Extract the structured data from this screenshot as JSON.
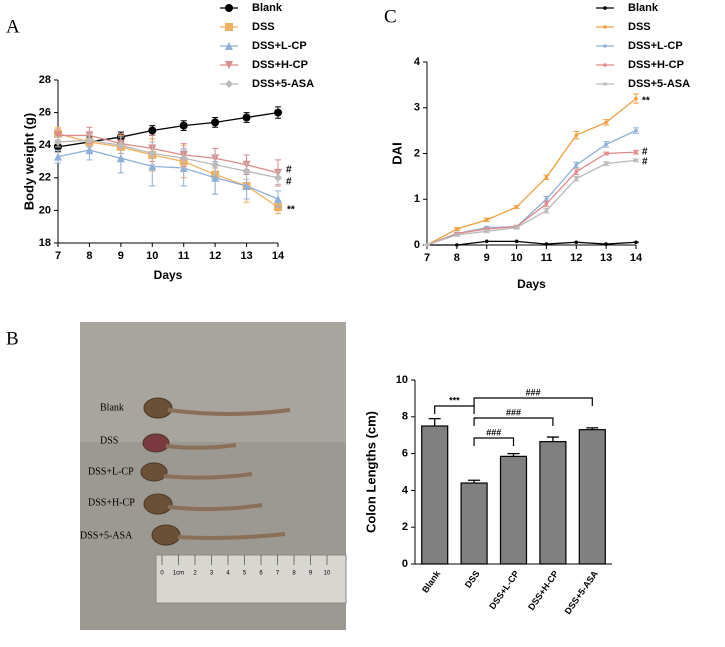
{
  "panel_labels": [
    "A",
    "C",
    "B"
  ],
  "chart_data": [
    {
      "type": "line",
      "xlabel": "Days",
      "ylabel": "Body weight (g)",
      "x": [
        7,
        8,
        9,
        10,
        11,
        12,
        13,
        14
      ],
      "xlim": [
        7,
        14
      ],
      "xticks": [
        7,
        8,
        9,
        10,
        11,
        12,
        13,
        14
      ],
      "ylim": [
        18,
        28
      ],
      "yticks": [
        18,
        20,
        22,
        24,
        26,
        28
      ],
      "series": [
        {
          "name": "Blank",
          "color": "#000000",
          "marker": "circle",
          "values": [
            23.9,
            24.2,
            24.5,
            24.9,
            25.2,
            25.4,
            25.7,
            26.0
          ],
          "errors": [
            0.3,
            0.3,
            0.3,
            0.3,
            0.3,
            0.3,
            0.3,
            0.35
          ]
        },
        {
          "name": "DSS",
          "color": "#f0b060",
          "marker": "square",
          "values": [
            24.7,
            24.2,
            23.9,
            23.4,
            23.0,
            22.2,
            21.5,
            20.2
          ],
          "errors": [
            0.4,
            0.5,
            0.7,
            1.0,
            1.0,
            1.2,
            1.0,
            0.4
          ]
        },
        {
          "name": "DSS+L-CP",
          "color": "#8fb0d8",
          "marker": "triangle",
          "values": [
            23.3,
            23.7,
            23.2,
            22.7,
            22.6,
            22.0,
            21.5,
            20.7
          ],
          "errors": [
            0.4,
            0.6,
            0.9,
            1.2,
            1.1,
            1.0,
            0.8,
            0.5
          ]
        },
        {
          "name": "DSS+H-CP",
          "color": "#d98a8a",
          "marker": "triangle-down",
          "values": [
            24.6,
            24.6,
            24.1,
            23.8,
            23.4,
            23.2,
            22.8,
            22.3
          ],
          "errors": [
            0.4,
            0.5,
            0.6,
            0.8,
            0.7,
            0.6,
            0.6,
            0.8
          ]
        },
        {
          "name": "DSS+5-ASA",
          "color": "#bbbbbb",
          "marker": "diamond",
          "values": [
            24.2,
            24.3,
            24.0,
            23.5,
            23.2,
            22.8,
            22.4,
            22.0
          ],
          "errors": [
            0.3,
            0.4,
            0.5,
            0.7,
            0.6,
            0.6,
            0.5,
            0.4
          ]
        }
      ],
      "annotations": [
        "#",
        "#",
        "**"
      ]
    },
    {
      "type": "line",
      "xlabel": "Days",
      "ylabel": "DAI",
      "x": [
        7,
        8,
        9,
        10,
        11,
        12,
        13,
        14
      ],
      "xlim": [
        7,
        14
      ],
      "xticks": [
        7,
        8,
        9,
        10,
        11,
        12,
        13,
        14
      ],
      "ylim": [
        0,
        4
      ],
      "yticks": [
        0,
        1,
        2,
        3,
        4
      ],
      "series": [
        {
          "name": "Blank",
          "color": "#000000",
          "marker": "dot",
          "values": [
            0,
            0,
            0.08,
            0.08,
            0.02,
            0.06,
            0.02,
            0.06
          ],
          "errors": [
            0,
            0,
            0,
            0,
            0,
            0,
            0,
            0
          ]
        },
        {
          "name": "DSS",
          "color": "#f0a040",
          "marker": "dot",
          "values": [
            0,
            0.35,
            0.55,
            0.83,
            1.48,
            2.4,
            2.68,
            3.2
          ],
          "errors": [
            0,
            0.03,
            0.04,
            0.03,
            0.05,
            0.08,
            0.06,
            0.1
          ]
        },
        {
          "name": "DSS+L-CP",
          "color": "#8fb0d8",
          "marker": "dot",
          "values": [
            0,
            0.25,
            0.38,
            0.4,
            1.0,
            1.75,
            2.2,
            2.5
          ],
          "errors": [
            0,
            0.03,
            0.03,
            0.03,
            0.06,
            0.06,
            0.06,
            0.06
          ]
        },
        {
          "name": "DSS+H-CP",
          "color": "#e08a8a",
          "marker": "dot",
          "values": [
            0,
            0.25,
            0.35,
            0.4,
            0.9,
            1.6,
            2.0,
            2.03
          ],
          "errors": [
            0,
            0.03,
            0.03,
            0.03,
            0.06,
            0.06,
            0.03,
            0.04
          ]
        },
        {
          "name": "DSS+5-ASA",
          "color": "#bbbbbb",
          "marker": "dot",
          "values": [
            0,
            0.22,
            0.3,
            0.38,
            0.75,
            1.45,
            1.78,
            1.85
          ],
          "errors": [
            0,
            0.03,
            0.03,
            0.03,
            0.05,
            0.05,
            0.04,
            0.03
          ]
        }
      ],
      "annotations": [
        "**",
        "#",
        "#"
      ]
    },
    {
      "type": "bar",
      "ylabel": "Colon Lengths (cm)",
      "color": "#808080",
      "categories": [
        "Blank",
        "DSS",
        "DSS+L-CP",
        "DSS+H-CP",
        "DSS+5-ASA"
      ],
      "values": [
        7.5,
        4.4,
        5.85,
        6.65,
        7.3
      ],
      "errors": [
        0.4,
        0.15,
        0.15,
        0.25,
        0.1
      ],
      "ylim": [
        0,
        10
      ],
      "yticks": [
        0,
        2,
        4,
        6,
        8,
        10
      ],
      "significance": [
        "***",
        "###",
        "###",
        "###"
      ]
    }
  ],
  "photo": {
    "labels": [
      "Blank",
      "DSS",
      "DSS+L-CP",
      "DSS+H-CP",
      "DSS+5-ASA"
    ],
    "ruler_labels": [
      "0",
      "1cm",
      "2",
      "3",
      "4",
      "5",
      "6",
      "7",
      "8",
      "9",
      "10"
    ]
  }
}
